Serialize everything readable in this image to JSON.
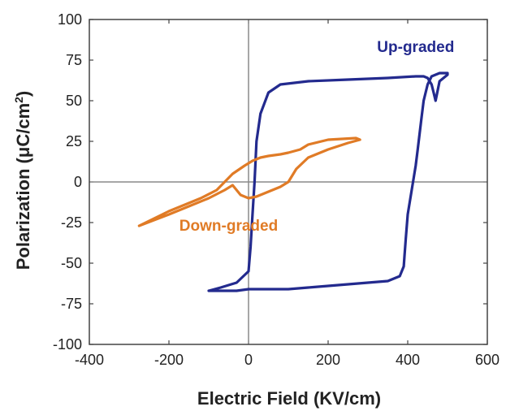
{
  "chart_data": {
    "type": "line",
    "xlabel": "Electric Field (KV/cm)",
    "ylabel": {
      "prefix": "Polarization (",
      "mu": "μ",
      "unit": "C/cm",
      "sup": "2",
      "suffix": ")"
    },
    "xlim": [
      -400,
      600
    ],
    "ylim": [
      -100,
      100
    ],
    "xticks": [
      -400,
      -200,
      0,
      200,
      400,
      600
    ],
    "yticks": [
      -100,
      -75,
      -50,
      -25,
      0,
      25,
      50,
      75,
      100
    ],
    "zero_lines": true,
    "grid": false,
    "series": [
      {
        "name": "Up-graded",
        "color": "#232a8e",
        "label_anchor": [
          420,
          80
        ],
        "x": [
          -100,
          -70,
          -30,
          0,
          5,
          10,
          15,
          20,
          30,
          50,
          80,
          150,
          250,
          350,
          420,
          440,
          450,
          460,
          465,
          470,
          480,
          500,
          500,
          480,
          470,
          460,
          450,
          440,
          435,
          430,
          425,
          420,
          410,
          400,
          395,
          392,
          390,
          380,
          350,
          300,
          250,
          200,
          150,
          100,
          50,
          0,
          -30,
          -50,
          -70,
          -90,
          -100
        ],
        "y": [
          -67,
          -65,
          -62,
          -55,
          -40,
          -20,
          0,
          25,
          42,
          55,
          60,
          62,
          63,
          64,
          65,
          65,
          64,
          60,
          55,
          50,
          62,
          66,
          67,
          67,
          66,
          65,
          60,
          50,
          40,
          30,
          20,
          10,
          -5,
          -20,
          -35,
          -45,
          -52,
          -58,
          -61,
          -62,
          -63,
          -64,
          -65,
          -66,
          -66,
          -66,
          -67,
          -67,
          -67,
          -67,
          -67
        ]
      },
      {
        "name": "Down-graded",
        "color": "#e07b26",
        "label_anchor": [
          -50,
          -30
        ],
        "x": [
          -275,
          -200,
          -150,
          -100,
          -60,
          -40,
          -20,
          0,
          20,
          50,
          80,
          100,
          120,
          150,
          200,
          250,
          280,
          270,
          200,
          150,
          130,
          100,
          80,
          50,
          30,
          10,
          -10,
          -40,
          -60,
          -80,
          -120,
          -200,
          -275
        ],
        "y": [
          -27,
          -20,
          -15,
          -10,
          -5,
          -2,
          -8,
          -10,
          -9,
          -6,
          -3,
          0,
          8,
          15,
          20,
          24,
          26,
          27,
          26,
          23,
          20,
          18,
          17,
          16,
          15,
          13,
          10,
          5,
          0,
          -5,
          -10,
          -18,
          -27
        ]
      }
    ]
  }
}
